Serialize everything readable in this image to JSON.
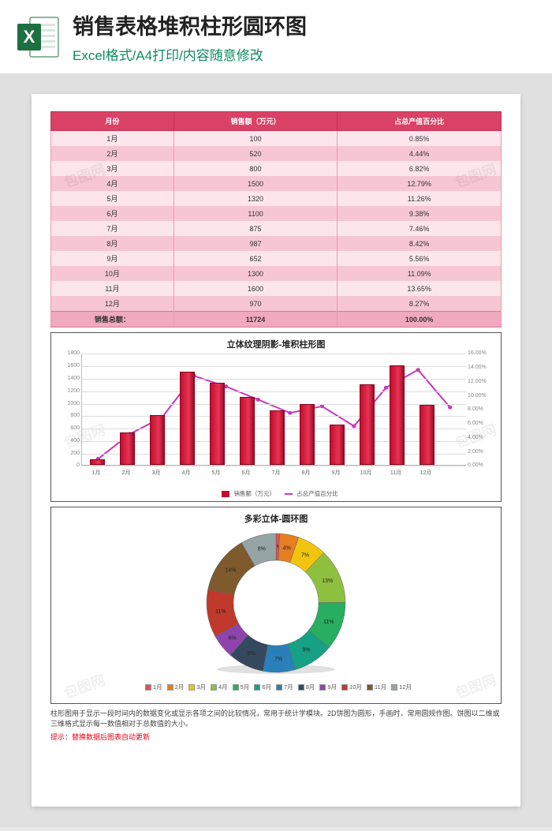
{
  "header": {
    "title": "销售表格堆积柱形圆环图",
    "subtitle": "Excel格式/A4打印/内容随意修改",
    "icon_letter": "X",
    "icon_bg": "#1d6f42",
    "icon_page": "#ffffff"
  },
  "table": {
    "columns": [
      "月份",
      "销售额（万元）",
      "占总产值百分比"
    ],
    "rows": [
      [
        "1月",
        "100",
        "0.85%"
      ],
      [
        "2月",
        "520",
        "4.44%"
      ],
      [
        "3月",
        "800",
        "6.82%"
      ],
      [
        "4月",
        "1500",
        "12.79%"
      ],
      [
        "5月",
        "1320",
        "11.26%"
      ],
      [
        "6月",
        "1100",
        "9.38%"
      ],
      [
        "7月",
        "875",
        "7.46%"
      ],
      [
        "8月",
        "987",
        "8.42%"
      ],
      [
        "9月",
        "652",
        "5.56%"
      ],
      [
        "10月",
        "1300",
        "11.09%"
      ],
      [
        "11月",
        "1600",
        "13.65%"
      ],
      [
        "12月",
        "970",
        "8.27%"
      ]
    ],
    "total_row": [
      "销售总额：",
      "11724",
      "100.00%"
    ],
    "header_bg": "#d94165",
    "row_odd_bg": "#fce6ec",
    "row_even_bg": "#f7c6d4",
    "total_bg": "#f0a9bf"
  },
  "bar_chart": {
    "title": "立体纹理阴影-堆积柱形图",
    "categories": [
      "1月",
      "2月",
      "3月",
      "4月",
      "5月",
      "6月",
      "7月",
      "8月",
      "9月",
      "10月",
      "11月",
      "12月"
    ],
    "values": [
      100,
      520,
      800,
      1500,
      1320,
      1100,
      875,
      987,
      652,
      1300,
      1600,
      970
    ],
    "pct": [
      0.85,
      4.44,
      6.82,
      12.79,
      11.26,
      9.38,
      7.46,
      8.42,
      5.56,
      11.09,
      13.65,
      8.27
    ],
    "y_left": {
      "min": 0,
      "max": 1800,
      "step": 200
    },
    "y_right": {
      "min": 0,
      "max": 16,
      "step": 2,
      "suffix": "%"
    },
    "bar_color": "#c20e2e",
    "line_color": "#c73bb9",
    "grid_color": "#dddddd",
    "legend": {
      "bar": "销售额（万元）",
      "line": "占总产值百分比"
    }
  },
  "donut": {
    "title": "多彩立体-圆环图",
    "labels": [
      "1月",
      "2月",
      "3月",
      "4月",
      "5月",
      "6月",
      "7月",
      "8月",
      "9月",
      "10月",
      "11月",
      "12月"
    ],
    "pct": [
      0.85,
      4.44,
      6.82,
      12.79,
      11.26,
      9.38,
      7.46,
      8.42,
      5.56,
      11.09,
      13.65,
      8.27
    ],
    "colors": [
      "#d9534f",
      "#e67e22",
      "#f1c40f",
      "#8fbf3f",
      "#27ae60",
      "#16a085",
      "#2980b9",
      "#34495e",
      "#8e44ad",
      "#c0392b",
      "#7f5a2d",
      "#95a5a6"
    ],
    "inner_radius": 54,
    "outer_radius": 88,
    "rotation_deg": -90
  },
  "footer": {
    "desc": "柱形图用于显示一段时间内的数据变化或显示各项之间的比较情况，常用于统计学模块。2D饼图为圆形，手画时，常用圆规作图。饼图以二维或三维格式显示每一数值相对于总数值的大小。",
    "hint": "提示：替换数据后图表自动更新"
  },
  "watermark": "包图网"
}
